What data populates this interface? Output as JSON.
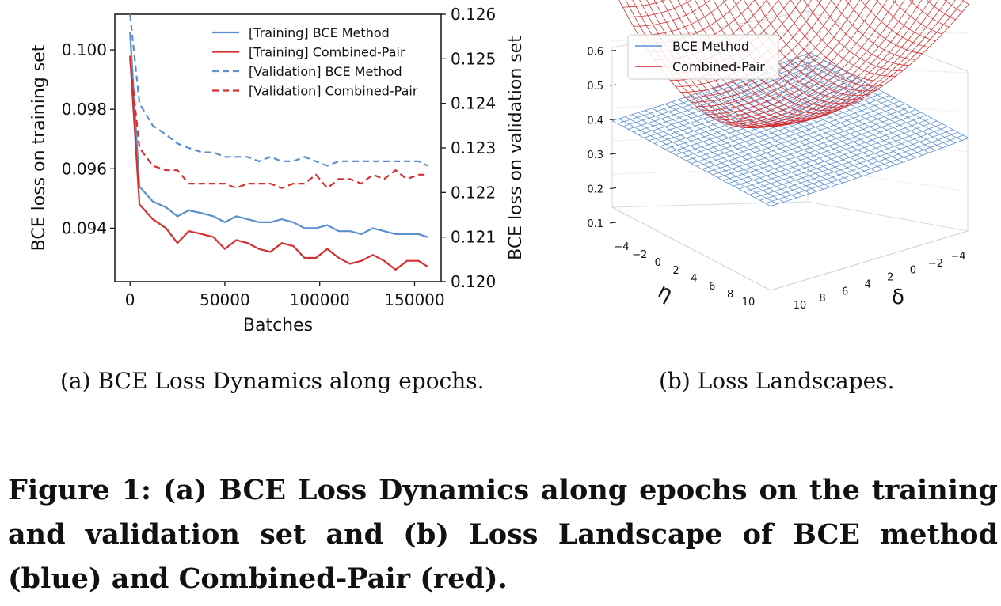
{
  "chart_data": [
    {
      "type": "line",
      "x": [
        0,
        5000,
        12000,
        19000,
        25000,
        31000,
        38000,
        44000,
        50000,
        56000,
        62000,
        68000,
        74000,
        80000,
        86000,
        92000,
        98000,
        104000,
        110000,
        116000,
        122000,
        128000,
        134000,
        140000,
        146000,
        152000,
        157000
      ],
      "xlabel": "Batches",
      "ylabel": "BCE loss on training set",
      "y2label": "BCE loss on validation set",
      "xticks": [
        "0",
        "50000",
        "100000",
        "150000"
      ],
      "yticks": [
        "0.094",
        "0.096",
        "0.098",
        "0.100"
      ],
      "y2ticks": [
        "0.120",
        "0.121",
        "0.122",
        "0.123",
        "0.124",
        "0.125",
        "0.126"
      ],
      "xlim": [
        -8000,
        164000
      ],
      "ylim": [
        0.0922,
        0.1012
      ],
      "y2lim": [
        0.12,
        0.126
      ],
      "legend_position": "top-right",
      "series": [
        {
          "name": "[Training] BCE Method",
          "axis": "left",
          "color": "#5b8fd0",
          "dash": "solid",
          "values": [
            0.1006,
            0.0954,
            0.0949,
            0.0947,
            0.0944,
            0.0946,
            0.0945,
            0.0944,
            0.0942,
            0.0944,
            0.0943,
            0.0942,
            0.0942,
            0.0943,
            0.0942,
            0.094,
            0.094,
            0.0941,
            0.0939,
            0.0939,
            0.0938,
            0.094,
            0.0939,
            0.0938,
            0.0938,
            0.0938,
            0.0937
          ]
        },
        {
          "name": "[Training] Combined-Pair",
          "axis": "left",
          "color": "#d62f2f",
          "dash": "solid",
          "values": [
            0.0998,
            0.0948,
            0.0943,
            0.094,
            0.0935,
            0.0939,
            0.0938,
            0.0937,
            0.0933,
            0.0936,
            0.0935,
            0.0933,
            0.0932,
            0.0935,
            0.0934,
            0.093,
            0.093,
            0.0933,
            0.093,
            0.0928,
            0.0929,
            0.0931,
            0.0929,
            0.0926,
            0.0929,
            0.0929,
            0.0927
          ]
        },
        {
          "name": "[Validation] BCE Method",
          "axis": "right",
          "color": "#5b8fd0",
          "dash": "dashed",
          "values": [
            0.1262,
            0.124,
            0.1235,
            0.1233,
            0.1231,
            0.123,
            0.1229,
            0.1229,
            0.1228,
            0.1228,
            0.1228,
            0.1227,
            0.1228,
            0.1227,
            0.1227,
            0.1228,
            0.1227,
            0.1226,
            0.1227,
            0.1227,
            0.1227,
            0.1227,
            0.1227,
            0.1227,
            0.1227,
            0.1227,
            0.1226
          ]
        },
        {
          "name": "[Validation] Combined-Pair",
          "axis": "right",
          "color": "#d62f2f",
          "dash": "dashed",
          "values": [
            0.125,
            0.123,
            0.1226,
            0.1225,
            0.1225,
            0.1222,
            0.1222,
            0.1222,
            0.1222,
            0.1221,
            0.1222,
            0.1222,
            0.1222,
            0.1221,
            0.1222,
            0.1222,
            0.1224,
            0.1221,
            0.1223,
            0.1223,
            0.1222,
            0.1224,
            0.1223,
            0.1225,
            0.1223,
            0.1224,
            0.1224
          ]
        }
      ]
    },
    {
      "type": "surface",
      "xlabel": "η",
      "ylabel": "δ",
      "xticks": [
        "−4",
        "−2",
        "0",
        "2",
        "4",
        "6",
        "8",
        "10"
      ],
      "yticks": [
        "10",
        "8",
        "6",
        "4",
        "2",
        "0",
        "−2",
        "−4"
      ],
      "zticks": [
        "0.1",
        "0.2",
        "0.3",
        "0.4",
        "0.5",
        "0.6"
      ],
      "legend_position": "top-left",
      "series": [
        {
          "name": "BCE Method",
          "color": "#5b8fd0",
          "z_range": [
            0.15,
            0.18
          ]
        },
        {
          "name": "Combined-Pair",
          "color": "#d62f2f",
          "z_range": [
            0.28,
            0.62
          ]
        }
      ]
    }
  ],
  "captions": {
    "a": "(a)  BCE Loss Dynamics along epochs.",
    "b": "(b)  Loss Landscapes.",
    "figure": "Figure 1: (a) BCE Loss Dynamics along epochs on the training and validation set and (b) Loss Landscape of BCE method (blue) and Combined-Pair (red)."
  }
}
